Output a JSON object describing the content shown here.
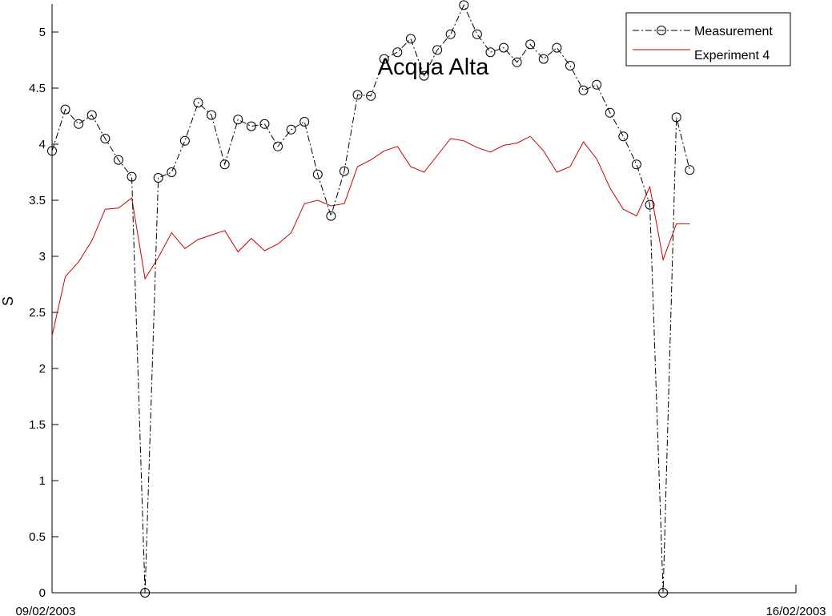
{
  "chart_data": {
    "type": "line",
    "title": "Acqua Alta",
    "xlabel": "",
    "ylabel": "S",
    "ylim": [
      0,
      5.25
    ],
    "yticks": [
      0,
      0.5,
      1,
      1.5,
      2,
      2.5,
      3,
      3.5,
      4,
      4.5,
      5
    ],
    "ytick_labels": [
      "0",
      "0.5",
      "1",
      "1.5",
      "2",
      "2.5",
      "3",
      "3.5",
      "4",
      "4.5",
      "5"
    ],
    "xlim": [
      "09/02/2003",
      "16/02/2003"
    ],
    "xtick_labels": [
      "09/02/2003",
      "16/02/2003"
    ],
    "grid": false,
    "legend_position": "top-right",
    "series": [
      {
        "name": "Measurement",
        "color": "#000000",
        "line_style": "dash-dot",
        "marker": "circle",
        "x": [
          0,
          1,
          2,
          3,
          4,
          5,
          6,
          7,
          8,
          9,
          10,
          11,
          12,
          13,
          14,
          15,
          16,
          17,
          18,
          19,
          20,
          21,
          22,
          23,
          24,
          25,
          26,
          27,
          28,
          29,
          30,
          31,
          32,
          33,
          34,
          35,
          36,
          37,
          38,
          39,
          40,
          41,
          42,
          43,
          44,
          45,
          46,
          47,
          48
        ],
        "values": [
          3.94,
          4.31,
          4.18,
          4.26,
          4.05,
          3.86,
          3.71,
          0.0,
          3.7,
          3.75,
          4.03,
          4.37,
          4.26,
          3.82,
          4.22,
          4.16,
          4.18,
          3.98,
          4.13,
          4.2,
          3.73,
          3.36,
          3.76,
          4.44,
          4.43,
          4.76,
          4.82,
          4.94,
          4.61,
          4.84,
          4.98,
          5.24,
          4.98,
          4.82,
          4.86,
          4.73,
          4.89,
          4.76,
          4.86,
          4.7,
          4.48,
          4.53,
          4.28,
          4.07,
          3.82,
          3.46,
          0.0,
          4.24,
          3.77
        ]
      },
      {
        "name": "Experiment 4",
        "color": "#cc0000",
        "line_style": "solid",
        "marker": "none",
        "x": [
          0,
          1,
          2,
          3,
          4,
          5,
          6,
          7,
          8,
          9,
          10,
          11,
          12,
          13,
          14,
          15,
          16,
          17,
          18,
          19,
          20,
          21,
          22,
          23,
          24,
          25,
          26,
          27,
          28,
          29,
          30,
          31,
          32,
          33,
          34,
          35,
          36,
          37,
          38,
          39,
          40,
          41,
          42,
          43,
          44,
          45,
          46,
          47,
          48
        ],
        "values": [
          2.29,
          2.82,
          2.95,
          3.14,
          3.42,
          3.43,
          3.52,
          2.8,
          2.99,
          3.21,
          3.07,
          3.15,
          3.19,
          3.23,
          3.04,
          3.16,
          3.05,
          3.11,
          3.21,
          3.47,
          3.5,
          3.45,
          3.47,
          3.8,
          3.86,
          3.94,
          3.98,
          3.8,
          3.75,
          3.9,
          4.05,
          4.03,
          3.97,
          3.93,
          3.99,
          4.01,
          4.07,
          3.94,
          3.75,
          3.8,
          4.02,
          3.87,
          3.61,
          3.42,
          3.36,
          3.62,
          2.97,
          3.29,
          3.29
        ]
      }
    ],
    "x_span": 56
  }
}
